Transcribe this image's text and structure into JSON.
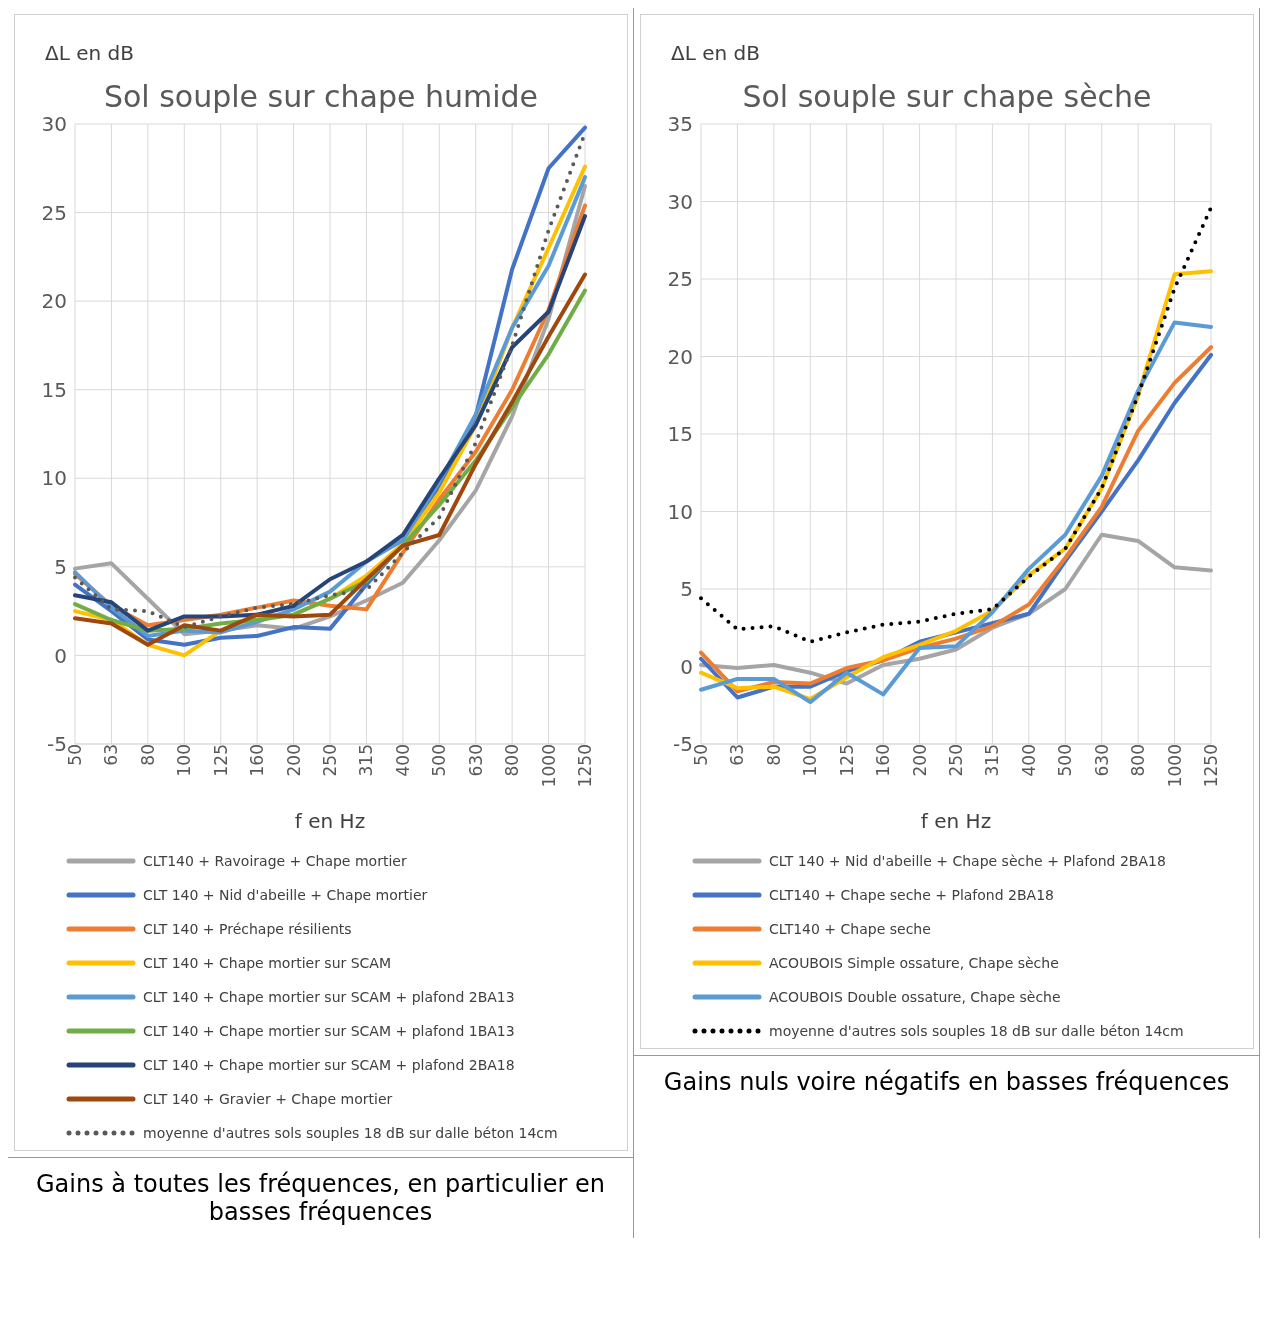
{
  "chart_data": [
    {
      "type": "line",
      "title": "Sol souple sur chape humide",
      "xlabel": "f en Hz",
      "ylabel": "ΔL en dB",
      "categories": [
        "50",
        "63",
        "80",
        "100",
        "125",
        "160",
        "200",
        "250",
        "315",
        "400",
        "500",
        "630",
        "800",
        "1000",
        "1250"
      ],
      "ylim": [
        -5,
        30
      ],
      "yticks": [
        -5,
        0,
        5,
        10,
        15,
        20,
        25,
        30
      ],
      "grid": true,
      "legend": "bottom",
      "marker": "none",
      "annotations": [
        "Gains à toutes les fréquences, en particulier en basses fréquences"
      ],
      "series": [
        {
          "name": "CLT140 + Ravoirage + Chape mortier",
          "color": "#a5a5a5",
          "values": [
            4.9,
            5.2,
            3.2,
            1.2,
            1.4,
            1.7,
            1.5,
            2.2,
            3.1,
            4.1,
            6.5,
            9.3,
            13.5,
            19,
            26.5
          ]
        },
        {
          "name": "CLT 140 + Nid d'abeille + Chape mortier",
          "color": "#4472c4",
          "values": [
            4.0,
            2.5,
            0.9,
            0.6,
            1.0,
            1.1,
            1.6,
            1.5,
            4.0,
            6.3,
            9.5,
            13.5,
            21.8,
            27.5,
            29.8
          ]
        },
        {
          "name": "CLT 140 + Préchape résilients",
          "color": "#ed7d31",
          "values": [
            4.6,
            2.8,
            1.7,
            2.0,
            2.3,
            2.7,
            3.1,
            2.8,
            2.6,
            5.8,
            8.8,
            11.5,
            15,
            19.5,
            25.4
          ]
        },
        {
          "name": "CLT 140 + Chape mortier sur SCAM",
          "color": "#ffc000",
          "values": [
            2.5,
            2.0,
            0.6,
            0.0,
            1.4,
            2.2,
            2.3,
            3.2,
            4.5,
            6.3,
            9.2,
            13,
            18.5,
            23,
            27.6
          ]
        },
        {
          "name": "CLT 140 + Chape mortier sur SCAM + plafond 2BA13",
          "color": "#5b9bd5",
          "values": [
            4.7,
            2.7,
            1.1,
            1.4,
            1.3,
            1.9,
            2.6,
            3.6,
            5.3,
            6.5,
            9.8,
            13.6,
            18.5,
            22,
            27.0
          ]
        },
        {
          "name": "CLT 140 + Chape mortier sur SCAM + plafond 1BA13",
          "color": "#70ad47",
          "values": [
            2.9,
            2.0,
            1.4,
            1.5,
            1.8,
            2.0,
            2.3,
            3.2,
            4.2,
            6.2,
            8.5,
            11,
            14,
            17,
            20.6
          ]
        },
        {
          "name": "CLT 140 + Chape mortier sur SCAM + plafond 2BA18",
          "color": "#264478",
          "values": [
            3.4,
            3.0,
            1.4,
            2.2,
            2.2,
            2.3,
            2.8,
            4.3,
            5.3,
            6.8,
            10,
            13,
            17.4,
            19.4,
            24.8
          ]
        },
        {
          "name": "CLT 140 + Gravier + Chape mortier",
          "color": "#9e480e",
          "values": [
            2.1,
            1.8,
            0.6,
            1.7,
            1.4,
            2.3,
            2.2,
            2.3,
            4.3,
            6.2,
            6.8,
            10.8,
            14.3,
            18,
            21.5
          ]
        },
        {
          "name": "moyenne d'autres sols souples 18 dB sur dalle béton 14cm",
          "color": "#595959",
          "line_style": "dotted",
          "values": [
            4.4,
            2.6,
            2.5,
            1.6,
            2.2,
            2.7,
            2.9,
            3.4,
            3.7,
            5.8,
            7.8,
            12,
            17.5,
            24.0,
            29.5
          ]
        }
      ]
    },
    {
      "type": "line",
      "title": "Sol souple sur chape sèche",
      "xlabel": "f en Hz",
      "ylabel": "ΔL en dB",
      "categories": [
        "50",
        "63",
        "80",
        "100",
        "125",
        "160",
        "200",
        "250",
        "315",
        "400",
        "500",
        "630",
        "800",
        "1000",
        "1250"
      ],
      "ylim": [
        -5,
        35
      ],
      "yticks": [
        -5,
        0,
        5,
        10,
        15,
        20,
        25,
        30,
        35
      ],
      "grid": true,
      "legend": "bottom",
      "marker": "none",
      "annotations": [
        "Gains nuls voire négatifs en basses fréquences"
      ],
      "series": [
        {
          "name": "CLT 140 + Nid d'abeille + Chape sèche + Plafond 2BA18",
          "color": "#a5a5a5",
          "values": [
            0.1,
            -0.1,
            0.1,
            -0.4,
            -1.1,
            0.1,
            0.5,
            1.1,
            2.5,
            3.4,
            5.0,
            8.5,
            8.1,
            6.4,
            6.2
          ]
        },
        {
          "name": "CLT140 + Chape seche + Plafond 2BA18",
          "color": "#4472c4",
          "values": [
            0.5,
            -2.0,
            -1.3,
            -1.3,
            -0.3,
            0.4,
            1.6,
            2.2,
            2.8,
            3.4,
            6.8,
            10.0,
            13.3,
            17,
            20.1
          ]
        },
        {
          "name": "CLT140 + Chape seche",
          "color": "#ed7d31",
          "values": [
            0.9,
            -1.6,
            -1.0,
            -1.1,
            -0.1,
            0.4,
            1.2,
            1.8,
            2.6,
            4.0,
            7.0,
            10.3,
            15.2,
            18.3,
            20.6
          ]
        },
        {
          "name": "ACOUBOIS Simple ossature, Chape sèche",
          "color": "#ffc000",
          "values": [
            -0.4,
            -1.4,
            -1.3,
            -2.1,
            -0.7,
            0.6,
            1.4,
            2.3,
            3.6,
            5.9,
            7.6,
            11.5,
            17.5,
            25.3,
            25.5
          ]
        },
        {
          "name": "ACOUBOIS Double ossature, Chape sèche",
          "color": "#5b9bd5",
          "values": [
            -1.5,
            -0.8,
            -0.8,
            -2.3,
            -0.4,
            -1.8,
            1.2,
            1.3,
            3.5,
            6.3,
            8.5,
            12.3,
            17.8,
            22.2,
            21.9
          ]
        },
        {
          "name": "moyenne d'autres sols souples 18 dB sur dalle béton 14cm",
          "color": "#000000",
          "line_style": "dotted",
          "values": [
            4.4,
            2.4,
            2.6,
            1.6,
            2.2,
            2.7,
            2.9,
            3.4,
            3.7,
            5.8,
            7.6,
            11.5,
            17.5,
            24.4,
            29.6
          ]
        }
      ]
    }
  ]
}
